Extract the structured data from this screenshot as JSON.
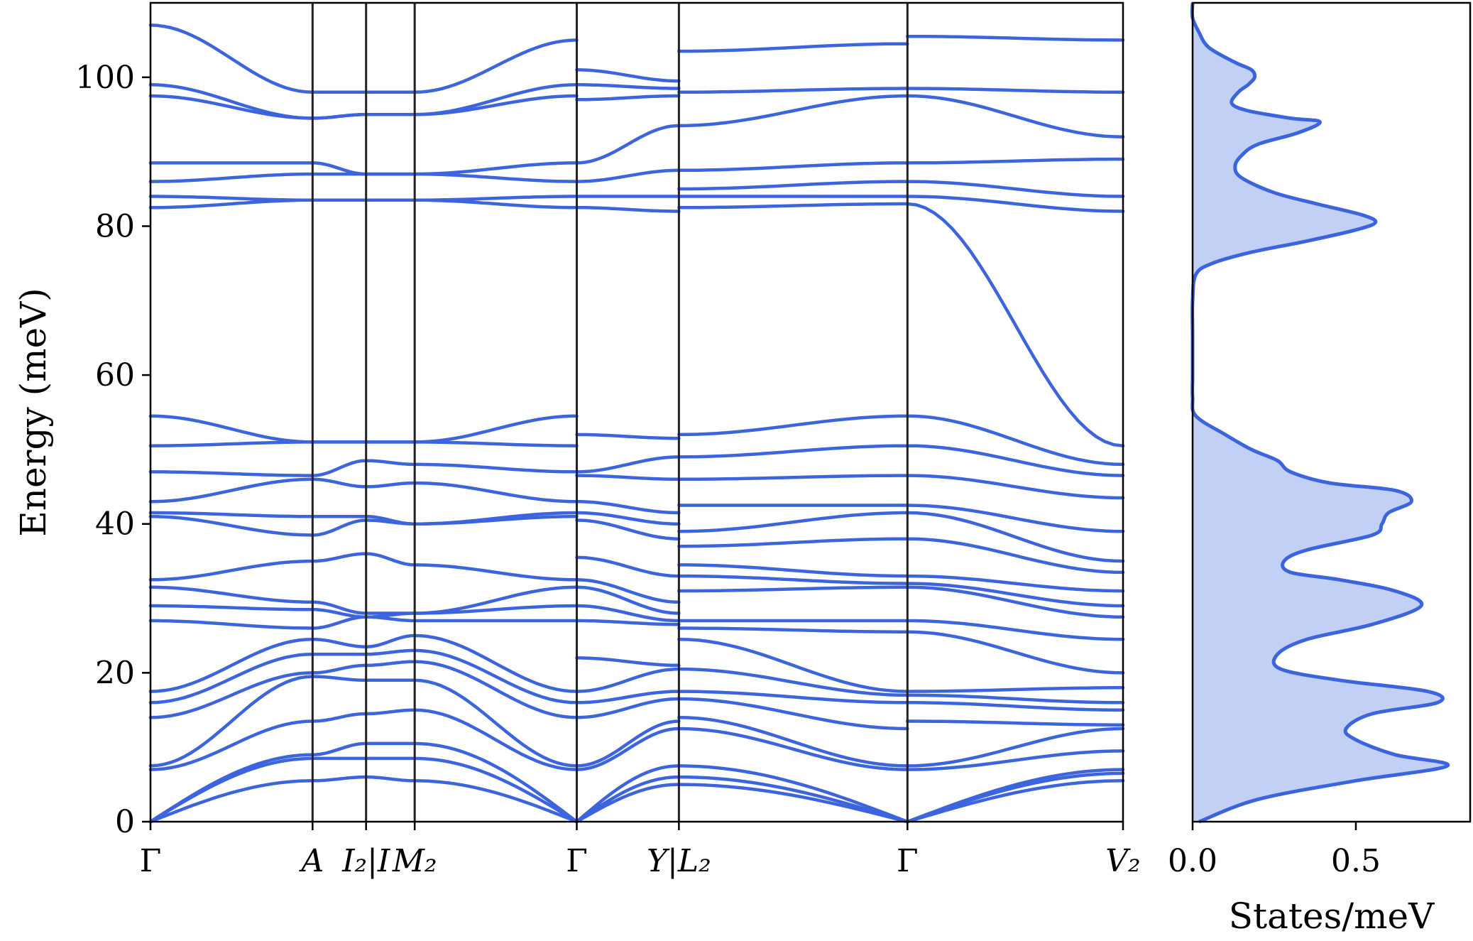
{
  "chart_data": [
    {
      "type": "line",
      "title": "",
      "ylabel": "Energy (meV)",
      "xlabel": "",
      "ylim": [
        0,
        110
      ],
      "yticks": [
        0,
        20,
        40,
        60,
        80,
        100
      ],
      "path_labels": [
        "Γ",
        "A",
        "I₂|I",
        "M₂",
        "Γ",
        "Y|L₂",
        "Γ",
        "V₂"
      ],
      "path_positions": [
        0.0,
        1.0,
        1.33,
        1.63,
        2.63,
        3.26,
        4.67,
        6.0
      ],
      "segments": [
        {
          "from": "Γ",
          "to": "A",
          "bands_start": [
            0,
            0,
            0,
            7,
            7.5,
            14,
            16,
            17.5,
            27,
            29,
            31.5,
            32.5,
            41,
            41.5,
            43,
            47,
            50.5,
            54.5,
            82.5,
            84,
            86,
            88.5,
            97.5,
            99,
            107
          ],
          "bands_end": [
            5.5,
            8.5,
            9,
            13.5,
            19.5,
            20,
            22.5,
            24.5,
            26,
            28.5,
            29.5,
            35,
            38.5,
            41,
            46,
            46.5,
            51,
            51,
            83.5,
            83.5,
            87,
            88.5,
            94.5,
            94.5,
            98
          ]
        },
        {
          "from": "A",
          "to": "I₂|I",
          "bands_start": [
            5.5,
            8.5,
            9,
            13.5,
            19.5,
            20,
            22.5,
            24.5,
            26,
            28.5,
            29.5,
            35,
            38.5,
            41,
            46,
            46.5,
            51,
            51,
            83.5,
            83.5,
            87,
            88.5,
            94.5,
            94.5,
            98
          ],
          "bands_end": [
            6,
            8.5,
            10.5,
            14.5,
            19,
            21,
            22.5,
            23.5,
            27.5,
            27.5,
            28,
            36,
            40.5,
            41,
            45,
            48.5,
            51,
            51,
            83.5,
            83.5,
            87,
            87,
            95,
            95,
            98
          ]
        },
        {
          "from": "I₂|I",
          "to": "M₂",
          "bands_start": [
            6,
            8.5,
            10.5,
            14.5,
            19,
            21,
            22.5,
            23.5,
            27.5,
            27.5,
            28,
            36,
            40.5,
            41,
            45,
            48.5,
            51,
            51,
            83.5,
            83.5,
            87,
            87,
            95,
            95,
            98
          ],
          "bands_end": [
            5.5,
            8.5,
            10.5,
            15,
            19,
            21.5,
            23,
            25,
            27,
            28,
            28,
            34.5,
            40,
            40,
            45.5,
            48,
            51,
            51,
            83.5,
            83.5,
            87,
            87,
            95,
            95,
            98
          ]
        },
        {
          "from": "M₂",
          "to": "Γ",
          "bands_start": [
            5.5,
            8.5,
            10.5,
            15,
            19,
            21.5,
            23,
            25,
            27,
            28,
            28,
            34.5,
            40,
            40,
            45.5,
            48,
            51,
            51,
            83.5,
            83.5,
            87,
            87,
            95,
            95,
            98
          ],
          "bands_end": [
            0,
            0,
            0,
            7,
            7.5,
            14,
            16,
            17.5,
            27,
            29,
            31.5,
            32.5,
            41,
            41.5,
            43,
            47,
            50.5,
            54.5,
            82.5,
            84,
            86,
            88.5,
            97.5,
            99,
            105
          ]
        },
        {
          "from": "Γ",
          "to": "Y|L₂",
          "bands_start": [
            0,
            0,
            0,
            7,
            7.5,
            14,
            16,
            17.5,
            22,
            27,
            29,
            31.5,
            32.5,
            35.5,
            40.5,
            41.5,
            43,
            46.5,
            47,
            52,
            82.5,
            84,
            86,
            88.5,
            97,
            99,
            101
          ],
          "bands_end": [
            5,
            6,
            7.5,
            12.5,
            13.5,
            16.5,
            17.5,
            20.5,
            21,
            26.5,
            27,
            28,
            29.5,
            33,
            38,
            40,
            41.5,
            46,
            49,
            51.5,
            82,
            84,
            87.5,
            93.5,
            97.5,
            98.5,
            99.5
          ]
        },
        {
          "from": "Y|L₂",
          "to": "Γ",
          "bands_start": [
            5,
            6,
            7.5,
            12.5,
            14,
            16.5,
            17.5,
            20.5,
            24.5,
            26,
            27,
            31,
            33,
            34.5,
            37,
            39,
            42.5,
            46,
            49,
            52,
            82.5,
            84,
            85,
            87.5,
            93.5,
            98,
            103.5
          ],
          "bands_end": [
            0,
            0,
            0,
            7,
            7.5,
            12.5,
            16,
            17,
            17.5,
            25.5,
            27,
            31.5,
            32,
            33,
            38,
            41.5,
            42.5,
            46.5,
            50.5,
            54.5,
            83,
            84,
            86,
            88.5,
            97.5,
            98.5,
            104.5
          ]
        },
        {
          "from": "Γ",
          "to": "V₂",
          "bands_start": [
            0,
            0,
            0,
            7,
            7.5,
            13.5,
            16,
            17,
            17.5,
            25.5,
            27,
            31.5,
            32,
            33,
            38,
            41.5,
            42.5,
            46.5,
            50.5,
            54.5,
            83,
            84,
            86,
            88.5,
            97.5,
            98.5,
            105.5
          ],
          "bands_end": [
            5.5,
            6.5,
            7,
            9.5,
            12.5,
            13,
            15,
            16,
            18,
            20,
            24.5,
            27.5,
            29,
            31,
            33.5,
            35,
            39,
            43.5,
            46.5,
            48,
            50.5,
            82,
            84,
            89,
            92,
            98,
            105
          ]
        }
      ]
    },
    {
      "type": "area",
      "title": "",
      "xlabel": "States/meV",
      "ylabel": "",
      "xlim": [
        0,
        0.85
      ],
      "xticks": [
        0.0,
        0.5
      ],
      "xtick_labels": [
        "0.0",
        "0.5"
      ],
      "ylim": [
        0,
        110
      ],
      "points": [
        [
          0.02,
          0
        ],
        [
          0.2,
          3
        ],
        [
          0.5,
          5.5
        ],
        [
          0.78,
          7.5
        ],
        [
          0.62,
          9
        ],
        [
          0.5,
          11
        ],
        [
          0.47,
          12.5
        ],
        [
          0.55,
          14.5
        ],
        [
          0.75,
          16
        ],
        [
          0.72,
          17.5
        ],
        [
          0.45,
          19
        ],
        [
          0.27,
          20.5
        ],
        [
          0.26,
          22.5
        ],
        [
          0.35,
          24.5
        ],
        [
          0.55,
          26.5
        ],
        [
          0.7,
          29
        ],
        [
          0.62,
          31
        ],
        [
          0.45,
          32.5
        ],
        [
          0.3,
          33.5
        ],
        [
          0.28,
          35
        ],
        [
          0.35,
          36.5
        ],
        [
          0.55,
          38.5
        ],
        [
          0.58,
          40
        ],
        [
          0.6,
          41.5
        ],
        [
          0.67,
          43
        ],
        [
          0.62,
          44.5
        ],
        [
          0.42,
          45.5
        ],
        [
          0.3,
          47
        ],
        [
          0.26,
          48.5
        ],
        [
          0.18,
          50
        ],
        [
          0.1,
          52
        ],
        [
          0.01,
          54.5
        ],
        [
          0.0,
          57
        ],
        [
          0.0,
          60
        ],
        [
          0.0,
          65
        ],
        [
          0.0,
          70
        ],
        [
          0.01,
          73.5
        ],
        [
          0.06,
          75
        ],
        [
          0.18,
          76.5
        ],
        [
          0.35,
          78
        ],
        [
          0.5,
          79.5
        ],
        [
          0.56,
          80.5
        ],
        [
          0.52,
          81.5
        ],
        [
          0.38,
          83
        ],
        [
          0.25,
          84.5
        ],
        [
          0.15,
          86.5
        ],
        [
          0.13,
          88
        ],
        [
          0.15,
          89.5
        ],
        [
          0.2,
          91
        ],
        [
          0.32,
          92.5
        ],
        [
          0.39,
          94
        ],
        [
          0.3,
          94.5
        ],
        [
          0.17,
          95.5
        ],
        [
          0.12,
          96.5
        ],
        [
          0.14,
          98
        ],
        [
          0.17,
          99
        ],
        [
          0.19,
          100
        ],
        [
          0.18,
          101
        ],
        [
          0.13,
          102
        ],
        [
          0.05,
          104
        ],
        [
          0.02,
          106
        ],
        [
          0.0,
          108
        ],
        [
          0.0,
          110
        ]
      ]
    }
  ]
}
